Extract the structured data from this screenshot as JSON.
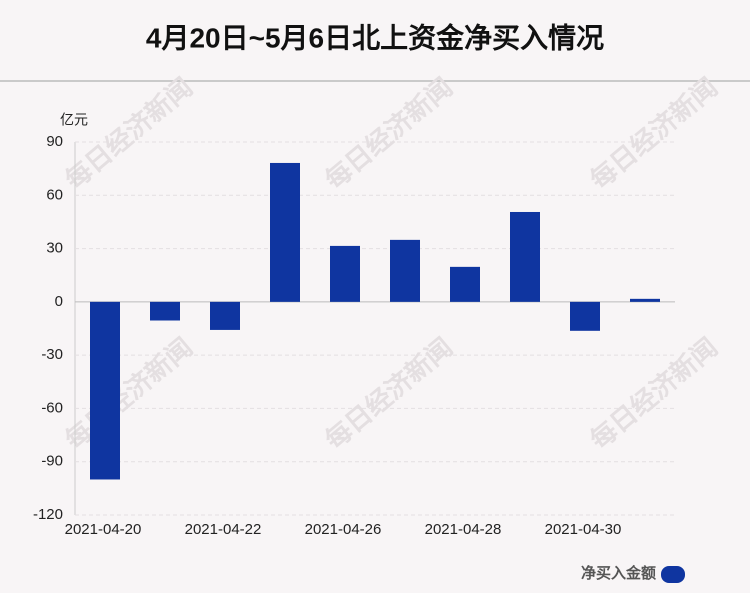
{
  "chart_data": {
    "type": "bar",
    "title": "4月20日~5月6日北上资金净买入情况",
    "y_unit": "亿元",
    "categories": [
      "2021-04-20",
      null,
      "2021-04-22",
      null,
      "2021-04-26",
      null,
      "2021-04-28",
      null,
      "2021-04-30",
      null
    ],
    "series": [
      {
        "name": "净买入金额",
        "color": "#0f35a0",
        "values": [
          -100,
          -10.5,
          -15.8,
          78.2,
          31.5,
          34.9,
          19.7,
          50.6,
          -16.3,
          1.7
        ]
      }
    ],
    "ylim": [
      -120,
      90
    ],
    "yticks": [
      -120,
      -90,
      -60,
      -30,
      0,
      30,
      60,
      90
    ],
    "grid": true,
    "watermark": "每日经济新闻"
  }
}
